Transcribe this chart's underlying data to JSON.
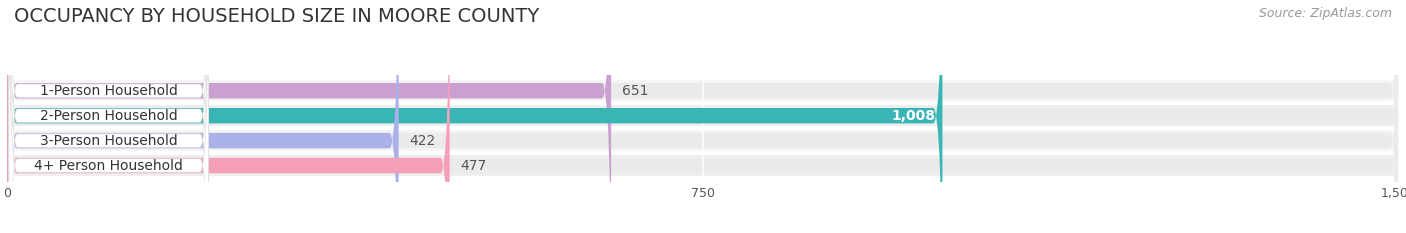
{
  "title": "OCCUPANCY BY HOUSEHOLD SIZE IN MOORE COUNTY",
  "source": "Source: ZipAtlas.com",
  "categories": [
    "1-Person Household",
    "2-Person Household",
    "3-Person Household",
    "4+ Person Household"
  ],
  "values": [
    651,
    1008,
    422,
    477
  ],
  "bar_colors": [
    "#c9a0d0",
    "#3ab5b5",
    "#aab0e8",
    "#f4a0b8"
  ],
  "value_inside": [
    false,
    true,
    false,
    false
  ],
  "xlim": [
    0,
    1500
  ],
  "xticks": [
    0,
    750,
    1500
  ],
  "background_color": "#ffffff",
  "bar_bg_color": "#ebebeb",
  "row_bg_colors": [
    "#f5f5f5",
    "#efefef",
    "#f5f5f5",
    "#efefef"
  ],
  "title_fontsize": 14,
  "source_fontsize": 9,
  "label_fontsize": 10,
  "value_fontsize": 10,
  "bar_height": 0.62
}
